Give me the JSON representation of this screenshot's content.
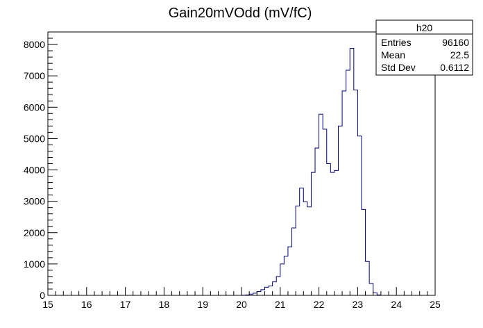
{
  "chart_data": {
    "type": "histogram",
    "title": "Gain20mVOdd (mV/fC)",
    "xlabel": "",
    "ylabel": "",
    "xlim": [
      15,
      25
    ],
    "ylim": [
      0,
      8400
    ],
    "bin_width": 0.1,
    "xticks": [
      15,
      16,
      17,
      18,
      19,
      20,
      21,
      22,
      23,
      24,
      25
    ],
    "yticks": [
      0,
      1000,
      2000,
      3000,
      4000,
      5000,
      6000,
      7000,
      8000
    ],
    "series": [
      {
        "line_color": "#000080",
        "bins_start": 20.0,
        "counts": [
          5,
          15,
          40,
          70,
          120,
          180,
          260,
          300,
          430,
          600,
          1000,
          1250,
          1550,
          2150,
          2850,
          3420,
          2980,
          2820,
          3920,
          4700,
          5780,
          5300,
          4200,
          3920,
          3980,
          5400,
          6520,
          7180,
          7880,
          6550,
          5080,
          2740,
          1080,
          380,
          80,
          15
        ]
      }
    ],
    "stats_box": {
      "name": "h20",
      "rows": [
        {
          "label": "Entries",
          "value": "96160"
        },
        {
          "label": "Mean",
          "value": "22.5"
        },
        {
          "label": "Std Dev",
          "value": "0.6112"
        }
      ]
    },
    "grid": false,
    "legend": "top-right"
  }
}
